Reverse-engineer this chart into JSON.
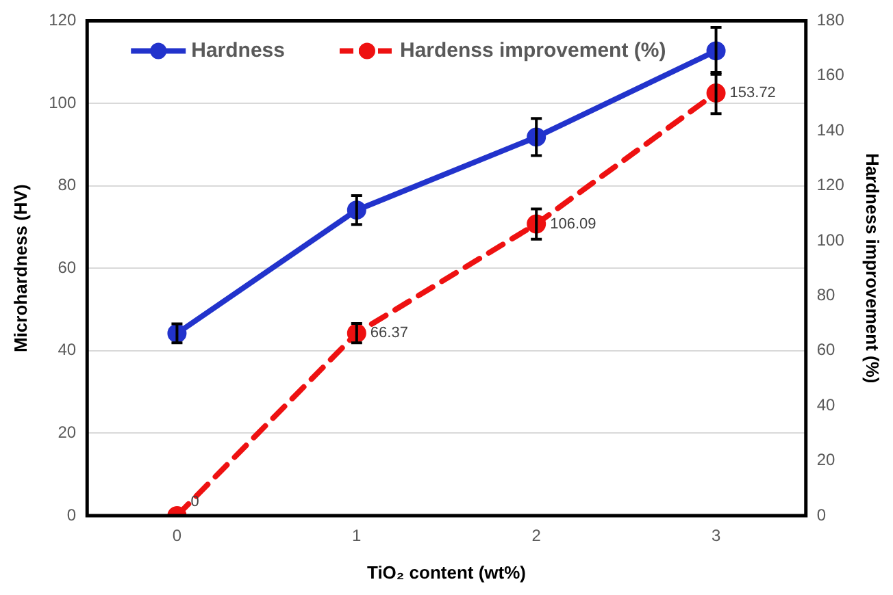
{
  "chart_data": {
    "type": "line",
    "xlabel": "TiO₂ content (wt%)",
    "ylabel": "Microhardness (HV)",
    "y2label": "Hardness improvement (%)",
    "categories": [
      "0",
      "1",
      "2",
      "3"
    ],
    "series": [
      {
        "name": "Hardness",
        "color": "#2233cc",
        "values": [
          44.2,
          74.1,
          91.8,
          112.7
        ],
        "errors": [
          2.3,
          3.5,
          4.5,
          5.7
        ],
        "line_style": "solid"
      },
      {
        "name": "Hardenss improvement (%)",
        "color": "#ee1111",
        "axis": "y2",
        "values": [
          0,
          66.37,
          106.09,
          153.72
        ],
        "errors": [
          null,
          3.5,
          5.5,
          7.5
        ],
        "value_labels": [
          "0",
          "66.37",
          "106.09",
          "153.72"
        ],
        "line_style": "dashed"
      }
    ],
    "ylim": [
      0,
      120
    ],
    "yticks": [
      0,
      20,
      40,
      60,
      80,
      100,
      120
    ],
    "y2lim": [
      0,
      180
    ],
    "y2ticks": [
      0,
      20,
      40,
      60,
      80,
      100,
      120,
      140,
      160,
      180
    ],
    "grid": "y",
    "legend": "top left",
    "marker": "circle"
  }
}
